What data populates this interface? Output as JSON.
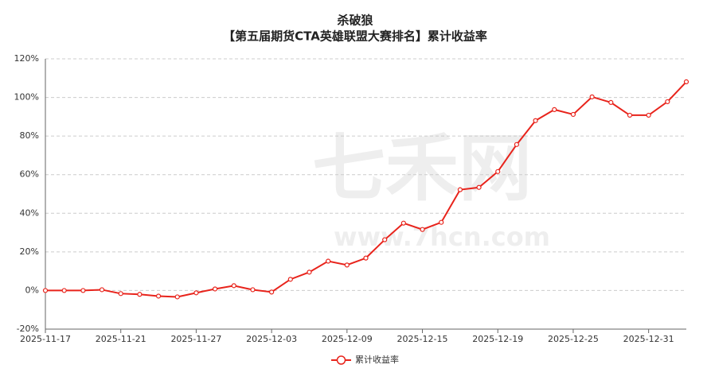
{
  "chart_data": {
    "type": "line",
    "title": "杀破狼",
    "subtitle": "【第五届期货CTA英雄联盟大赛排名】累计收益率",
    "watermark": [
      "七禾网",
      "www.7hcn.com"
    ],
    "categories": [
      "2025-11-17",
      null,
      null,
      null,
      "2025-11-21",
      null,
      null,
      null,
      "2025-11-27",
      null,
      null,
      null,
      "2025-12-03",
      null,
      null,
      null,
      "2025-12-09",
      null,
      null,
      null,
      "2025-12-15",
      null,
      null,
      null,
      "2025-12-19",
      null,
      null,
      null,
      "2025-12-25",
      null,
      null,
      null,
      "2025-12-31",
      null,
      null
    ],
    "series": [
      {
        "name": "累计收益率",
        "color": "#e8231b",
        "values": [
          0,
          0,
          0,
          0.4,
          -1.6,
          -2,
          -2.9,
          -3.3,
          -1.2,
          0.8,
          2.5,
          0.4,
          -0.8,
          5.8,
          9.5,
          15.2,
          13.2,
          16.8,
          26.3,
          34.9,
          31.6,
          35.3,
          52.2,
          53.4,
          61.6,
          75.6,
          88,
          93.7,
          91.2,
          100.3,
          97.4,
          90.8,
          90.8,
          97.8,
          108.1
        ]
      }
    ],
    "ylim": [
      -20,
      120
    ],
    "yticks": [
      {
        "value": -20,
        "label": "-20%"
      },
      {
        "value": 0,
        "label": "0%"
      },
      {
        "value": 20,
        "label": "20%"
      },
      {
        "value": 40,
        "label": "40%"
      },
      {
        "value": 60,
        "label": "60%"
      },
      {
        "value": 80,
        "label": "80%"
      },
      {
        "value": 100,
        "label": "100%"
      },
      {
        "value": 120,
        "label": "120%"
      }
    ],
    "grid": true,
    "legend": "bottom"
  }
}
